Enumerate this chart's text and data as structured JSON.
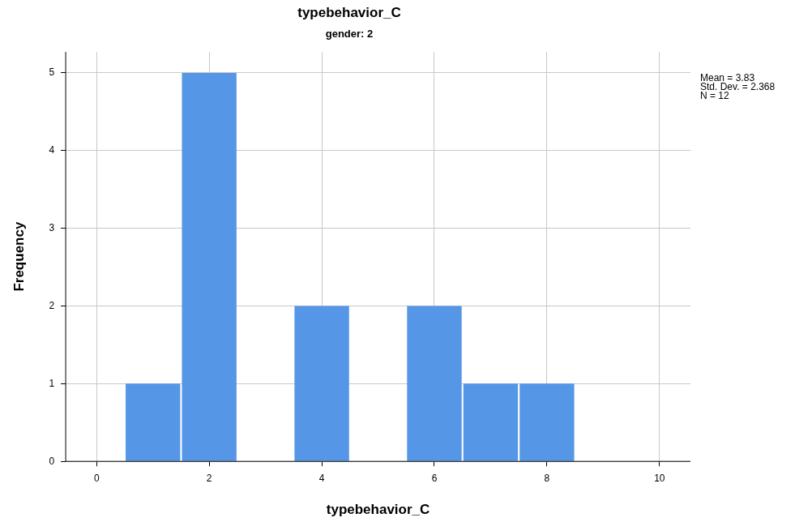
{
  "chart_data": {
    "type": "histogram",
    "title": "typebehavior_C",
    "subtitle": "gender: 2",
    "xlabel": "typebehavior_C",
    "ylabel": "Frequency",
    "bins": [
      0.5,
      1.5,
      2.5,
      3.5,
      4.5,
      5.5,
      6.5,
      7.5,
      8.5
    ],
    "values": [
      1,
      5,
      0,
      2,
      0,
      2,
      1,
      1
    ],
    "color": "#5596e6",
    "xlim": [
      -0.55,
      10.55
    ],
    "xticks": [
      0,
      2,
      4,
      6,
      8,
      10
    ],
    "ylim": [
      0,
      5.27
    ],
    "yticks": [
      0,
      1,
      2,
      3,
      4,
      5
    ],
    "grid": true,
    "legend": false,
    "annotations": [
      "Mean = 3.83",
      "Std. Dev. = 2.368",
      "N = 12"
    ]
  }
}
